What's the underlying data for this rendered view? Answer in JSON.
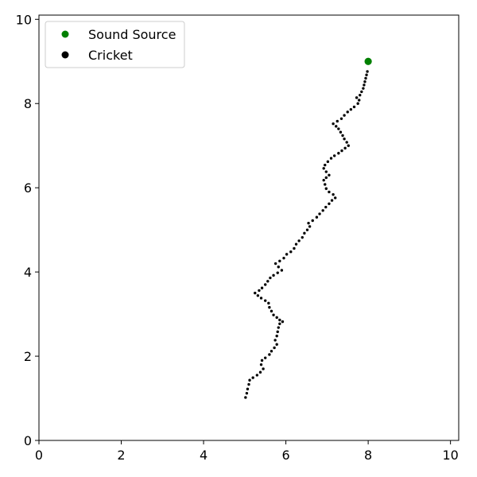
{
  "chart_data": {
    "type": "scatter",
    "xlim": [
      0,
      10.2
    ],
    "ylim": [
      0,
      10.1
    ],
    "x_ticks": [
      0,
      2,
      4,
      6,
      8,
      10
    ],
    "y_ticks": [
      0,
      2,
      4,
      6,
      8,
      10
    ],
    "grid": false,
    "legend_position": "top-left",
    "legend": [
      {
        "label": "Sound Source",
        "color": "#008000"
      },
      {
        "label": "Cricket",
        "color": "#000000"
      }
    ],
    "series": [
      {
        "name": "Sound Source",
        "color": "#008000",
        "points": [
          [
            8.0,
            9.0
          ]
        ]
      },
      {
        "name": "Cricket",
        "color": "#000000",
        "points": [
          [
            5.02,
            1.02
          ],
          [
            5.05,
            1.12
          ],
          [
            5.07,
            1.22
          ],
          [
            5.1,
            1.33
          ],
          [
            5.12,
            1.43
          ],
          [
            5.2,
            1.49
          ],
          [
            5.3,
            1.55
          ],
          [
            5.38,
            1.62
          ],
          [
            5.45,
            1.7
          ],
          [
            5.4,
            1.8
          ],
          [
            5.42,
            1.9
          ],
          [
            5.5,
            1.96
          ],
          [
            5.6,
            2.04
          ],
          [
            5.65,
            2.12
          ],
          [
            5.72,
            2.2
          ],
          [
            5.78,
            2.28
          ],
          [
            5.74,
            2.38
          ],
          [
            5.78,
            2.48
          ],
          [
            5.8,
            2.58
          ],
          [
            5.82,
            2.68
          ],
          [
            5.85,
            2.77
          ],
          [
            5.92,
            2.82
          ],
          [
            5.85,
            2.86
          ],
          [
            5.78,
            2.92
          ],
          [
            5.7,
            2.98
          ],
          [
            5.65,
            3.07
          ],
          [
            5.6,
            3.16
          ],
          [
            5.58,
            3.26
          ],
          [
            5.5,
            3.32
          ],
          [
            5.4,
            3.38
          ],
          [
            5.32,
            3.44
          ],
          [
            5.25,
            3.5
          ],
          [
            5.35,
            3.56
          ],
          [
            5.42,
            3.62
          ],
          [
            5.5,
            3.7
          ],
          [
            5.56,
            3.78
          ],
          [
            5.62,
            3.86
          ],
          [
            5.7,
            3.92
          ],
          [
            5.8,
            3.98
          ],
          [
            5.9,
            4.04
          ],
          [
            5.82,
            4.12
          ],
          [
            5.75,
            4.2
          ],
          [
            5.85,
            4.26
          ],
          [
            5.95,
            4.33
          ],
          [
            6.02,
            4.42
          ],
          [
            6.12,
            4.48
          ],
          [
            6.2,
            4.56
          ],
          [
            6.25,
            4.66
          ],
          [
            6.32,
            4.74
          ],
          [
            6.4,
            4.82
          ],
          [
            6.45,
            4.92
          ],
          [
            6.52,
            5.0
          ],
          [
            6.58,
            5.08
          ],
          [
            6.55,
            5.16
          ],
          [
            6.65,
            5.22
          ],
          [
            6.75,
            5.3
          ],
          [
            6.82,
            5.38
          ],
          [
            6.9,
            5.46
          ],
          [
            6.97,
            5.54
          ],
          [
            7.05,
            5.62
          ],
          [
            7.12,
            5.7
          ],
          [
            7.2,
            5.76
          ],
          [
            7.15,
            5.84
          ],
          [
            7.05,
            5.9
          ],
          [
            6.98,
            5.98
          ],
          [
            6.95,
            6.08
          ],
          [
            6.92,
            6.18
          ],
          [
            6.98,
            6.24
          ],
          [
            7.05,
            6.3
          ],
          [
            6.98,
            6.38
          ],
          [
            6.92,
            6.46
          ],
          [
            6.95,
            6.54
          ],
          [
            7.02,
            6.62
          ],
          [
            7.1,
            6.7
          ],
          [
            7.18,
            6.76
          ],
          [
            7.28,
            6.82
          ],
          [
            7.36,
            6.88
          ],
          [
            7.44,
            6.94
          ],
          [
            7.52,
            7.0
          ],
          [
            7.48,
            7.08
          ],
          [
            7.42,
            7.16
          ],
          [
            7.38,
            7.24
          ],
          [
            7.33,
            7.32
          ],
          [
            7.28,
            7.4
          ],
          [
            7.22,
            7.46
          ],
          [
            7.15,
            7.52
          ],
          [
            7.25,
            7.58
          ],
          [
            7.35,
            7.64
          ],
          [
            7.42,
            7.72
          ],
          [
            7.5,
            7.8
          ],
          [
            7.58,
            7.86
          ],
          [
            7.66,
            7.92
          ],
          [
            7.75,
            8.0
          ],
          [
            7.78,
            8.08
          ],
          [
            7.72,
            8.14
          ],
          [
            7.8,
            8.2
          ],
          [
            7.84,
            8.28
          ],
          [
            7.88,
            8.36
          ],
          [
            7.9,
            8.44
          ],
          [
            7.92,
            8.52
          ],
          [
            7.94,
            8.6
          ],
          [
            7.96,
            8.68
          ],
          [
            7.98,
            8.76
          ]
        ]
      }
    ]
  }
}
